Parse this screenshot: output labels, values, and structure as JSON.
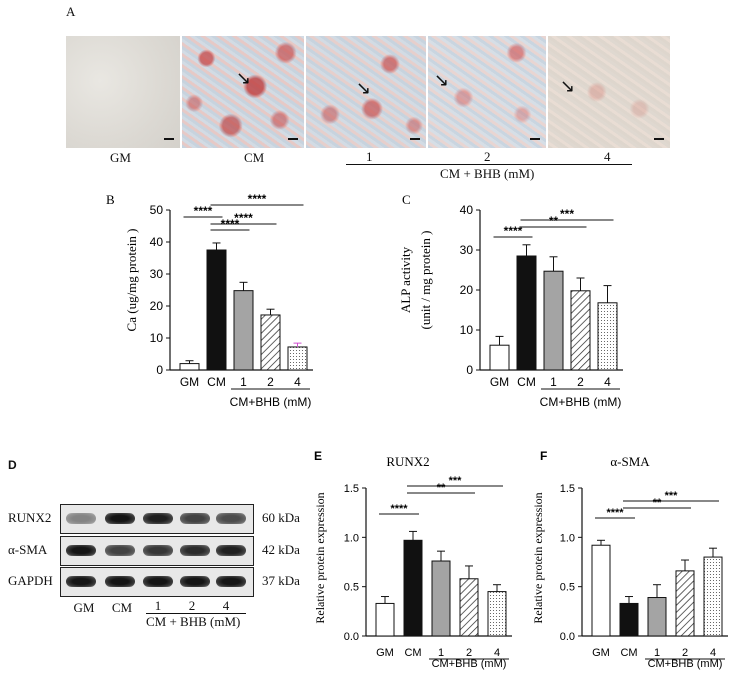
{
  "panel_a": {
    "letter": "A",
    "image_labels": [
      "GM",
      "CM",
      "1",
      "2",
      "4"
    ],
    "group_label": "CM + BHB (mM)"
  },
  "panel_d": {
    "letter": "D",
    "rows": [
      {
        "protein": "RUNX2",
        "kda": "60 kDa",
        "intensity": [
          0.45,
          0.95,
          0.9,
          0.75,
          0.7
        ]
      },
      {
        "protein": "α-SMA",
        "kda": "42 kDa",
        "intensity": [
          0.95,
          0.75,
          0.8,
          0.85,
          0.9
        ]
      },
      {
        "protein": "GAPDH",
        "kda": "37 kDa",
        "intensity": [
          0.95,
          0.95,
          0.95,
          0.95,
          0.95
        ]
      }
    ],
    "lanes": [
      "GM",
      "CM",
      "1",
      "2",
      "4"
    ],
    "group_label": "CM + BHB (mM)"
  },
  "chart_data": [
    {
      "id": "B",
      "type": "bar",
      "panel_letter": "B",
      "title": "",
      "ylabel": "Ca (ug/mg protein )",
      "categories": [
        "GM",
        "CM",
        "1",
        "2",
        "4"
      ],
      "values": [
        2,
        37.5,
        24.8,
        17.2,
        7.2
      ],
      "errors": [
        0.9,
        2.2,
        2.6,
        1.8,
        1.2
      ],
      "ylim": [
        0,
        50
      ],
      "yticks": [
        0,
        10,
        20,
        30,
        40,
        50
      ],
      "group_label": "CM+BHB (mM)",
      "significance": [
        {
          "label": "****"
        },
        {
          "label": "****"
        },
        {
          "label": "****"
        },
        {
          "label": "****"
        }
      ],
      "fills": [
        "white",
        "black",
        "gray",
        "hatch",
        "dots"
      ]
    },
    {
      "id": "C",
      "type": "bar",
      "panel_letter": "C",
      "title": "",
      "ylabel": "ALP activity",
      "ylabel2": "(unit / mg protein )",
      "categories": [
        "GM",
        "CM",
        "1",
        "2",
        "4"
      ],
      "values": [
        6.2,
        28.5,
        24.7,
        19.8,
        16.8
      ],
      "errors": [
        2.2,
        2.8,
        3.6,
        3.2,
        4.3
      ],
      "ylim": [
        0,
        40
      ],
      "yticks": [
        0,
        10,
        20,
        30,
        40
      ],
      "group_label": "CM+BHB (mM)",
      "significance": [
        {
          "label": "****"
        },
        {
          "label": "**"
        },
        {
          "label": "***"
        }
      ],
      "fills": [
        "white",
        "black",
        "gray",
        "hatch",
        "dots"
      ]
    },
    {
      "id": "E",
      "type": "bar",
      "panel_letter": "E",
      "title": "RUNX2",
      "ylabel": "Relative protein expression",
      "categories": [
        "GM",
        "CM",
        "1",
        "2",
        "4"
      ],
      "values": [
        0.33,
        0.97,
        0.76,
        0.58,
        0.45
      ],
      "errors": [
        0.07,
        0.09,
        0.1,
        0.13,
        0.07
      ],
      "ylim": [
        0,
        1.5
      ],
      "yticks": [
        0.0,
        0.5,
        1.0,
        1.5
      ],
      "group_label": "CM+BHB (mM)",
      "significance": [
        {
          "label": "****"
        },
        {
          "label": "**"
        },
        {
          "label": "***"
        }
      ],
      "fills": [
        "white",
        "black",
        "gray",
        "hatch",
        "dots"
      ]
    },
    {
      "id": "F",
      "type": "bar",
      "panel_letter": "F",
      "title": "α-SMA",
      "ylabel": "Relative protein expression",
      "categories": [
        "GM",
        "CM",
        "1",
        "2",
        "4"
      ],
      "values": [
        0.92,
        0.33,
        0.39,
        0.66,
        0.8
      ],
      "errors": [
        0.05,
        0.07,
        0.13,
        0.11,
        0.09
      ],
      "ylim": [
        0,
        1.5
      ],
      "yticks": [
        0.0,
        0.5,
        1.0,
        1.5
      ],
      "group_label": "CM+BHB (mM)",
      "significance": [
        {
          "label": "****"
        },
        {
          "label": "**"
        },
        {
          "label": "***"
        }
      ],
      "fills": [
        "white",
        "black",
        "gray",
        "hatch",
        "dots"
      ]
    }
  ]
}
